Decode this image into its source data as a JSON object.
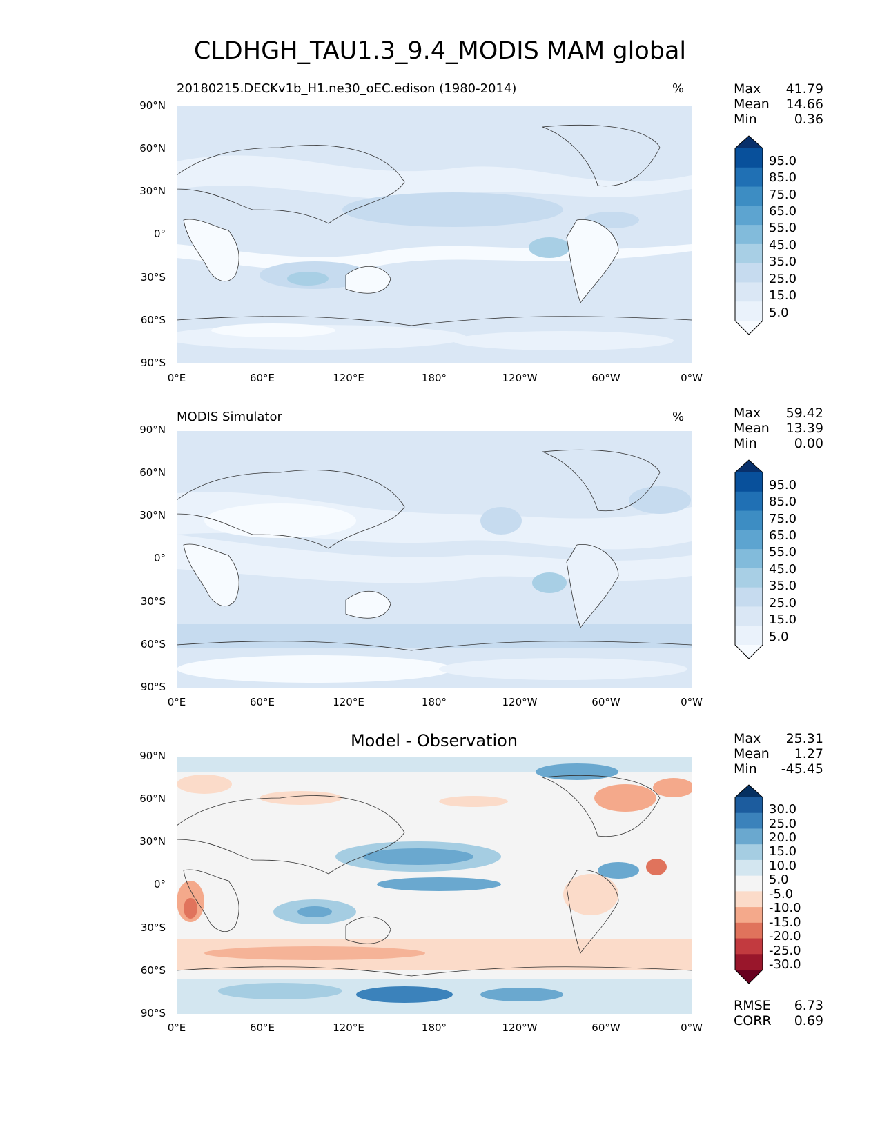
{
  "title": "CLDHGH_TAU1.3_9.4_MODIS MAM global",
  "lat_ticks": [
    "90°N",
    "60°N",
    "30°N",
    "0°",
    "30°S",
    "60°S",
    "90°S"
  ],
  "lon_ticks": [
    "0°E",
    "60°E",
    "120°E",
    "180°",
    "120°W",
    "60°W",
    "0°W"
  ],
  "panels": [
    {
      "title": "20180215.DECKv1b_H1.ne30_oEC.edison (1980-2014)",
      "units": "%",
      "stats": {
        "max_label": "Max",
        "max": "41.79",
        "mean_label": "Mean",
        "mean": "14.66",
        "min_label": "Min",
        "min": "0.36"
      },
      "colorbar": {
        "labels": [
          "95.0",
          "85.0",
          "75.0",
          "65.0",
          "55.0",
          "45.0",
          "35.0",
          "25.0",
          "15.0",
          "5.0"
        ],
        "colors": [
          "#08306b",
          "#08509b",
          "#2070b4",
          "#3d8dc3",
          "#5da4d0",
          "#82bbdb",
          "#a8cfe5",
          "#c6dbef",
          "#dae7f5",
          "#eaf2fb",
          "#f7fbff"
        ]
      }
    },
    {
      "title": "MODIS Simulator",
      "units": "%",
      "stats": {
        "max_label": "Max",
        "max": "59.42",
        "mean_label": "Mean",
        "mean": "13.39",
        "min_label": "Min",
        "min": "0.00"
      },
      "colorbar": {
        "labels": [
          "95.0",
          "85.0",
          "75.0",
          "65.0",
          "55.0",
          "45.0",
          "35.0",
          "25.0",
          "15.0",
          "5.0"
        ],
        "colors": [
          "#08306b",
          "#08509b",
          "#2070b4",
          "#3d8dc3",
          "#5da4d0",
          "#82bbdb",
          "#a8cfe5",
          "#c6dbef",
          "#dae7f5",
          "#eaf2fb",
          "#f7fbff"
        ]
      }
    },
    {
      "title": "Model - Observation",
      "units": "",
      "stats": {
        "max_label": "Max",
        "max": "25.31",
        "mean_label": "Mean",
        "mean": "1.27",
        "min_label": "Min",
        "min": "-45.45"
      },
      "extra_stats": {
        "rmse_label": "RMSE",
        "rmse": "6.73",
        "corr_label": "CORR",
        "corr": "0.69"
      },
      "colorbar": {
        "labels": [
          "30.0",
          "25.0",
          "20.0",
          "15.0",
          "10.0",
          "5.0",
          "-5.0",
          "-10.0",
          "-15.0",
          "-20.0",
          "-25.0",
          "-30.0"
        ],
        "colors": [
          "#053061",
          "#1c5c9e",
          "#3b82bb",
          "#6aa8cf",
          "#a5cde2",
          "#d3e6f0",
          "#f4f4f4",
          "#fbdbc9",
          "#f4a98b",
          "#e0735c",
          "#c23a3f",
          "#99162b",
          "#67001f"
        ]
      }
    }
  ]
}
